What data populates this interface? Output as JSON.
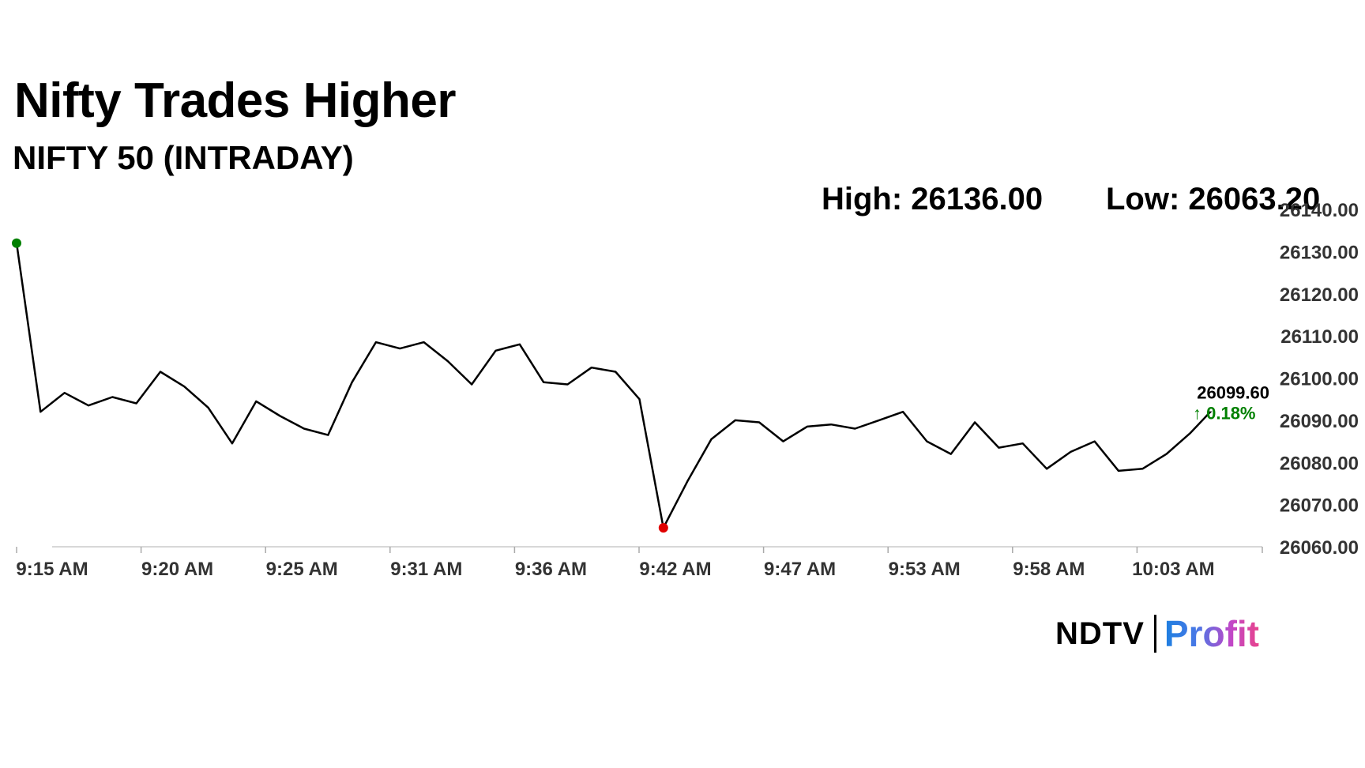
{
  "header": {
    "title": "Nifty Trades Higher",
    "subtitle": "NIFTY 50 (INTRADAY)"
  },
  "stats": {
    "high": "High: 26136.00",
    "low": "Low: 26063.20"
  },
  "last_price": {
    "value": "26099.60",
    "change": "↑ 0.18%"
  },
  "logo": {
    "ndtv": "NDTV",
    "profit": "Profit"
  },
  "colors": {
    "line": "#000000",
    "open_marker": "#008000",
    "low_marker": "#e00000",
    "last_marker": "#0000cc",
    "change_positive": "#008000",
    "axis_text": "#333333"
  },
  "chart_data": {
    "type": "line",
    "title": "Nifty Trades Higher",
    "subtitle": "NIFTY 50 (INTRADAY)",
    "ylim": [
      26060,
      26140
    ],
    "yticks": [
      "26060.00",
      "26070.00",
      "26080.00",
      "26090.00",
      "26100.00",
      "26110.00",
      "26120.00",
      "26130.00",
      "26140.00"
    ],
    "y_axis_side": "right",
    "grid": false,
    "xticks": [
      "9:15 AM",
      "9:20 AM",
      "9:25 AM",
      "9:31 AM",
      "9:36 AM",
      "9:42 AM",
      "9:47 AM",
      "9:53 AM",
      "9:58 AM",
      "10:03 AM"
    ],
    "x": [
      "9:15",
      "9:16",
      "9:17",
      "9:18",
      "9:19",
      "9:20",
      "9:21",
      "9:22",
      "9:23",
      "9:24",
      "9:25",
      "9:26",
      "9:27",
      "9:28",
      "9:29",
      "9:30",
      "9:31",
      "9:32",
      "9:33",
      "9:34",
      "9:35",
      "9:36",
      "9:37",
      "9:38",
      "9:39",
      "9:40",
      "9:41",
      "9:42",
      "9:43",
      "9:44",
      "9:45",
      "9:46",
      "9:47",
      "9:48",
      "9:49",
      "9:50",
      "9:51",
      "9:52",
      "9:53",
      "9:54",
      "9:55",
      "9:56",
      "9:57",
      "9:58",
      "9:59",
      "10:00",
      "10:01",
      "10:02",
      "10:03",
      "10:04",
      "10:05",
      "10:06",
      "10:07"
    ],
    "series": [
      {
        "values": [
          26132.0,
          26092.0,
          26096.5,
          26093.5,
          26095.5,
          26094.0,
          26101.5,
          26098.0,
          26093.0,
          26084.5,
          26094.5,
          26091.0,
          26088.0,
          26086.5,
          26099.0,
          26108.5,
          26107.0,
          26108.5,
          26104.0,
          26098.5,
          26106.5,
          26108.0,
          26099.0,
          26098.5,
          26102.5,
          26101.5,
          26095.0,
          26064.5,
          26075.5,
          26085.5,
          26090.0,
          26089.5,
          26085.0,
          26088.5,
          26089.0,
          26088.0,
          26090.0,
          26092.0,
          26085.0,
          26082.0,
          26089.5,
          26083.5,
          26084.5,
          26078.5,
          26082.5,
          26085.0,
          26078.0,
          26078.5,
          26082.0,
          26087.0,
          26093.0,
          26100.5,
          26099.6
        ]
      }
    ],
    "open": 26132.0,
    "high": 26136.0,
    "low": 26063.2,
    "last": 26099.6,
    "change_percent": 0.18
  }
}
